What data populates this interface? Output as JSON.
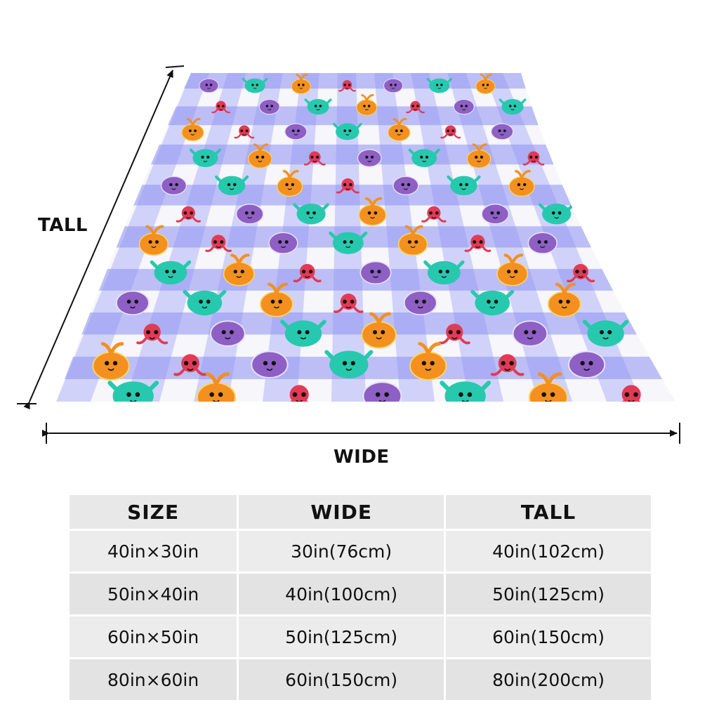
{
  "dimension_labels": {
    "tall": "TALL",
    "wide": "WIDE"
  },
  "colors": {
    "blanket_check": "#8c8ff0",
    "blanket_light": "#c9cbf8",
    "blanket_white": "#f6f6fb",
    "critter_purple": "#8e5fc4",
    "critter_teal": "#27c9ae",
    "critter_orange": "#f3901f",
    "critter_red": "#e23a55"
  },
  "critter_icons": [
    "purple-blob-critter-icon",
    "teal-blob-critter-icon",
    "orange-sprout-critter-icon",
    "red-octopus-critter-icon"
  ],
  "size_table": {
    "headers": [
      "SIZE",
      "WIDE",
      "TALL"
    ],
    "rows": [
      {
        "size": "40in×30in",
        "wide": "30in(76cm)",
        "tall": "40in(102cm)"
      },
      {
        "size": "50in×40in",
        "wide": "40in(100cm)",
        "tall": "50in(125cm)"
      },
      {
        "size": "60in×50in",
        "wide": "50in(125cm)",
        "tall": "60in(150cm)"
      },
      {
        "size": "80in×60in",
        "wide": "60in(150cm)",
        "tall": "80in(200cm)"
      }
    ]
  }
}
